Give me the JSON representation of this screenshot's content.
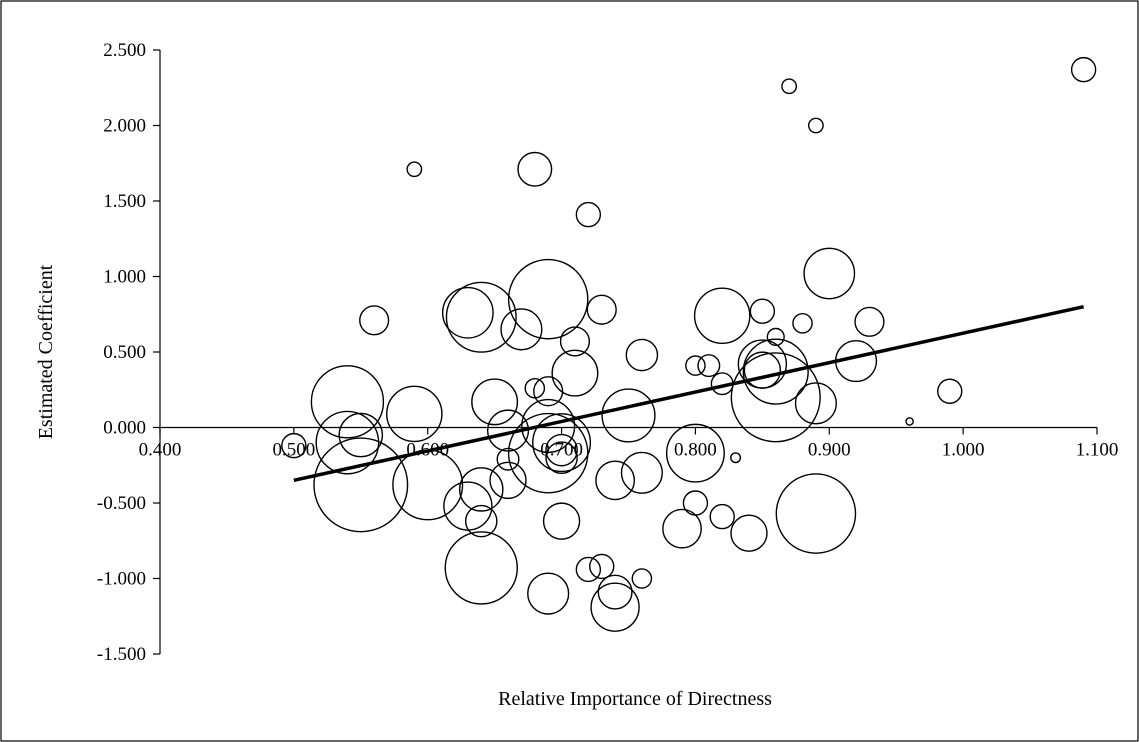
{
  "chart_data": {
    "type": "scatter",
    "title": "",
    "xlabel": "Relative Importance of Directness",
    "ylabel": "Estimated Coefficient",
    "xlim": [
      0.4,
      1.1
    ],
    "ylim": [
      -1.5,
      2.5
    ],
    "x_ticks": [
      "0.400",
      "0.500",
      "0.600",
      "0.700",
      "0.800",
      "0.900",
      "1.000",
      "1.100"
    ],
    "y_ticks": [
      "2.500",
      "2.000",
      "1.500",
      "1.000",
      "0.500",
      "0.000",
      "-0.500",
      "-1.000",
      "-1.500"
    ],
    "grid": false,
    "legend": "none",
    "bubble_size_note": "marker size varies",
    "points": [
      {
        "x": 0.5,
        "y": -0.12,
        "s": 1.0
      },
      {
        "x": 0.54,
        "y": 0.17,
        "s": 3.0
      },
      {
        "x": 0.54,
        "y": -0.1,
        "s": 2.6
      },
      {
        "x": 0.55,
        "y": -0.05,
        "s": 1.8
      },
      {
        "x": 0.55,
        "y": -0.38,
        "s": 3.9
      },
      {
        "x": 0.56,
        "y": 0.71,
        "s": 1.2
      },
      {
        "x": 0.59,
        "y": 1.71,
        "s": 0.6
      },
      {
        "x": 0.59,
        "y": 0.09,
        "s": 2.3
      },
      {
        "x": 0.6,
        "y": -0.38,
        "s": 2.9
      },
      {
        "x": 0.63,
        "y": 0.76,
        "s": 2.1
      },
      {
        "x": 0.63,
        "y": -0.52,
        "s": 2.0
      },
      {
        "x": 0.64,
        "y": 0.73,
        "s": 2.9
      },
      {
        "x": 0.64,
        "y": -0.41,
        "s": 1.8
      },
      {
        "x": 0.64,
        "y": -0.62,
        "s": 1.3
      },
      {
        "x": 0.64,
        "y": -0.93,
        "s": 3.0
      },
      {
        "x": 0.65,
        "y": 0.17,
        "s": 1.9
      },
      {
        "x": 0.66,
        "y": -0.02,
        "s": 1.7
      },
      {
        "x": 0.66,
        "y": -0.21,
        "s": 0.9
      },
      {
        "x": 0.66,
        "y": -0.35,
        "s": 1.5
      },
      {
        "x": 0.67,
        "y": 0.65,
        "s": 1.7
      },
      {
        "x": 0.68,
        "y": 1.71,
        "s": 1.4
      },
      {
        "x": 0.68,
        "y": 0.26,
        "s": 0.8
      },
      {
        "x": 0.69,
        "y": 0.85,
        "s": 3.3
      },
      {
        "x": 0.69,
        "y": 0.24,
        "s": 1.2
      },
      {
        "x": 0.69,
        "y": 0.01,
        "s": 2.2
      },
      {
        "x": 0.69,
        "y": -0.17,
        "s": 3.3
      },
      {
        "x": 0.69,
        "y": -1.1,
        "s": 1.7
      },
      {
        "x": 0.7,
        "y": -0.1,
        "s": 2.4
      },
      {
        "x": 0.7,
        "y": -0.15,
        "s": 1.3
      },
      {
        "x": 0.7,
        "y": -0.2,
        "s": 1.3
      },
      {
        "x": 0.7,
        "y": -0.62,
        "s": 1.5
      },
      {
        "x": 0.71,
        "y": 0.57,
        "s": 1.2
      },
      {
        "x": 0.71,
        "y": 0.36,
        "s": 1.9
      },
      {
        "x": 0.72,
        "y": 1.41,
        "s": 1.0
      },
      {
        "x": 0.72,
        "y": -0.94,
        "s": 1.0
      },
      {
        "x": 0.73,
        "y": 0.78,
        "s": 1.2
      },
      {
        "x": 0.73,
        "y": -0.92,
        "s": 1.0
      },
      {
        "x": 0.74,
        "y": -0.35,
        "s": 1.6
      },
      {
        "x": 0.74,
        "y": -1.09,
        "s": 1.4
      },
      {
        "x": 0.74,
        "y": -1.19,
        "s": 2.0
      },
      {
        "x": 0.75,
        "y": 0.08,
        "s": 2.2
      },
      {
        "x": 0.76,
        "y": 0.48,
        "s": 1.3
      },
      {
        "x": 0.76,
        "y": -0.3,
        "s": 1.7
      },
      {
        "x": 0.76,
        "y": -1.0,
        "s": 0.8
      },
      {
        "x": 0.79,
        "y": -0.67,
        "s": 1.6
      },
      {
        "x": 0.8,
        "y": 0.41,
        "s": 0.8
      },
      {
        "x": 0.8,
        "y": -0.17,
        "s": 2.4
      },
      {
        "x": 0.8,
        "y": -0.5,
        "s": 1.0
      },
      {
        "x": 0.81,
        "y": 0.41,
        "s": 0.9
      },
      {
        "x": 0.82,
        "y": 0.74,
        "s": 2.3
      },
      {
        "x": 0.82,
        "y": 0.29,
        "s": 0.9
      },
      {
        "x": 0.82,
        "y": -0.59,
        "s": 1.0
      },
      {
        "x": 0.83,
        "y": -0.2,
        "s": 0.4
      },
      {
        "x": 0.84,
        "y": -0.7,
        "s": 1.5
      },
      {
        "x": 0.85,
        "y": 0.77,
        "s": 1.0
      },
      {
        "x": 0.85,
        "y": 0.42,
        "s": 2.0
      },
      {
        "x": 0.85,
        "y": 0.38,
        "s": 1.5
      },
      {
        "x": 0.86,
        "y": 0.6,
        "s": 0.7
      },
      {
        "x": 0.86,
        "y": 0.37,
        "s": 2.7
      },
      {
        "x": 0.86,
        "y": 0.2,
        "s": 3.7
      },
      {
        "x": 0.87,
        "y": 2.26,
        "s": 0.6
      },
      {
        "x": 0.88,
        "y": 0.69,
        "s": 0.8
      },
      {
        "x": 0.89,
        "y": 2.0,
        "s": 0.6
      },
      {
        "x": 0.89,
        "y": 0.16,
        "s": 1.7
      },
      {
        "x": 0.89,
        "y": -0.57,
        "s": 3.3
      },
      {
        "x": 0.9,
        "y": 1.02,
        "s": 2.1
      },
      {
        "x": 0.92,
        "y": 0.44,
        "s": 1.7
      },
      {
        "x": 0.93,
        "y": 0.7,
        "s": 1.2
      },
      {
        "x": 0.96,
        "y": 0.04,
        "s": 0.3
      },
      {
        "x": 0.99,
        "y": 0.24,
        "s": 1.0
      },
      {
        "x": 1.09,
        "y": 2.37,
        "s": 1.0
      }
    ],
    "trend_line": {
      "x": [
        0.5,
        1.09
      ],
      "y": [
        -0.35,
        0.8
      ]
    }
  }
}
